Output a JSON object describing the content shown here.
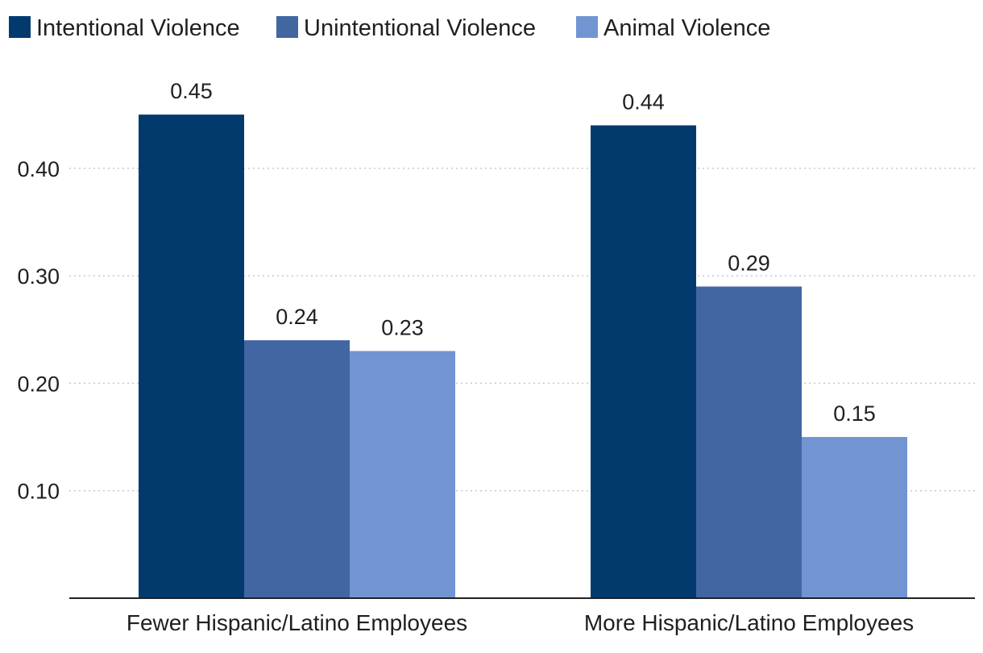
{
  "chart_data": {
    "type": "bar",
    "categories": [
      "Fewer Hispanic/Latino Employees",
      "More Hispanic/Latino Employees"
    ],
    "series": [
      {
        "name": "Intentional Violence",
        "values": [
          0.45,
          0.44
        ],
        "labels": [
          "0.45",
          "0.44"
        ],
        "color": "#023a6e"
      },
      {
        "name": "Unintentional Violence",
        "values": [
          0.24,
          0.29
        ],
        "labels": [
          "0.24",
          "0.29"
        ],
        "color": "#4266a1"
      },
      {
        "name": "Animal Violence",
        "values": [
          0.23,
          0.15
        ],
        "labels": [
          "0.23",
          "0.15"
        ],
        "color": "#7294d3"
      }
    ],
    "yticks": [
      0.1,
      0.2,
      0.3,
      0.4
    ],
    "ytick_labels": [
      "0.10",
      "0.20",
      "0.30",
      "0.40"
    ],
    "ylim": [
      0.0,
      0.5
    ],
    "grid": true,
    "legend_position": "top-left",
    "title": "",
    "xlabel": "",
    "ylabel": ""
  }
}
